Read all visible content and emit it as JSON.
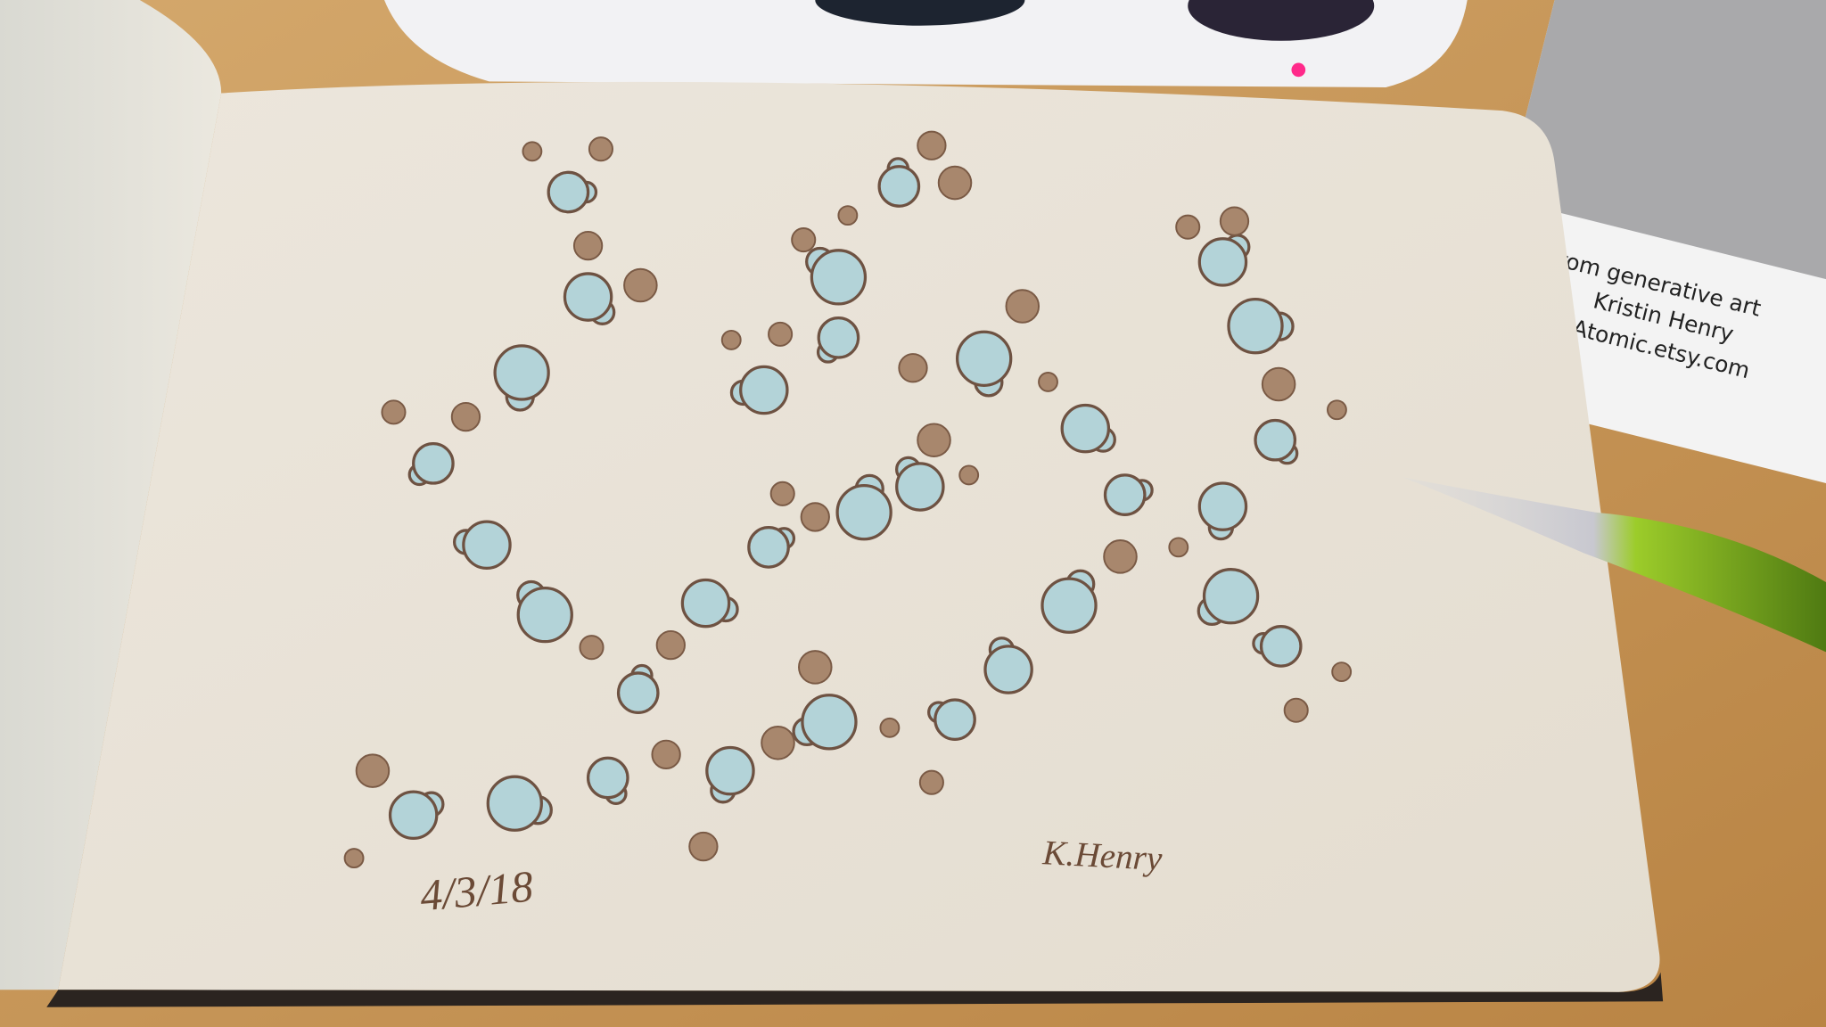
{
  "notebook": {
    "date": "4/3/18",
    "signature": "K.Henry"
  },
  "card": {
    "lines": [
      "from generative art",
      "Kristin Henry",
      "ArtAtomic.etsy.com"
    ]
  }
}
